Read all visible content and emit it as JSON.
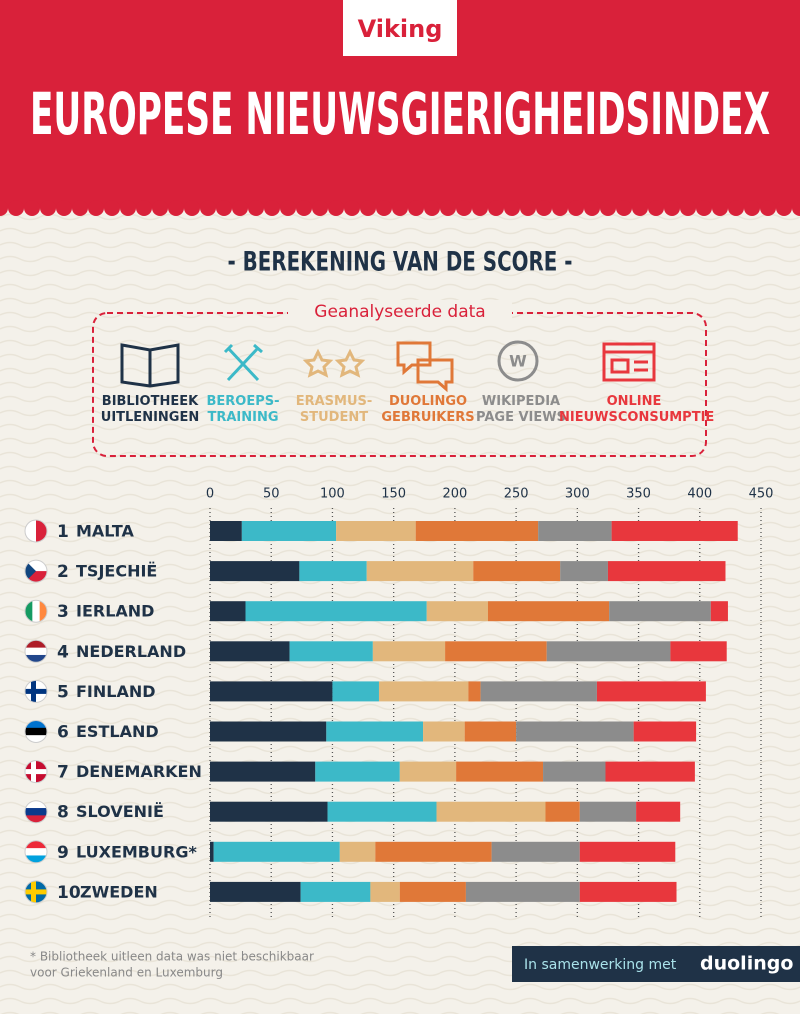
{
  "header": {
    "logo": "Viking",
    "title": "EUROPESE NIEUWSGIERIGHEIDSINDEX"
  },
  "subtitle": "- BEREKENING VAN DE SCORE -",
  "sources_title": "Geanalyseerde data",
  "chart_data": {
    "type": "stacked-bar-horizontal",
    "ranks": [
      1,
      2,
      3,
      4,
      5,
      6,
      7,
      8,
      9,
      10
    ],
    "categories": [
      "MALTA",
      "TSJECHIË",
      "IERLAND",
      "NEDERLAND",
      "FINLAND",
      "ESTLAND",
      "DENEMARKEN",
      "SLOVENIË",
      "LUXEMBURG*",
      "ZWEDEN"
    ],
    "series": [
      {
        "name": "BIBLIOTHEEK\nUITLENINGEN",
        "color": "#1f3247",
        "values": [
          26,
          73,
          29,
          65,
          100,
          95,
          86,
          96,
          3,
          74
        ]
      },
      {
        "name": "BEROEPS-\nTRAINING",
        "color": "#3cb9c8",
        "values": [
          77,
          55,
          148,
          68,
          38,
          79,
          69,
          89,
          103,
          57
        ]
      },
      {
        "name": "ERASMUS-\nSTUDENT",
        "color": "#e2b77c",
        "values": [
          65,
          87,
          50,
          59,
          73,
          34,
          46,
          89,
          29,
          24
        ]
      },
      {
        "name": "DUOLINGO\nGEBRUIKERS",
        "color": "#e07838",
        "values": [
          100,
          71,
          99,
          83,
          10,
          42,
          71,
          28,
          95,
          54
        ]
      },
      {
        "name": "WIKIPEDIA\nPAGE VIEWS",
        "color": "#8c8c8c",
        "values": [
          60,
          39,
          83,
          101,
          95,
          96,
          51,
          46,
          72,
          93
        ]
      },
      {
        "name": "ONLINE\nNIEUWSCONSUMPTIE",
        "color": "#e8373d",
        "values": [
          103,
          96,
          14,
          46,
          89,
          51,
          73,
          36,
          78,
          79
        ]
      }
    ],
    "xlim": [
      0,
      450
    ],
    "xticks": [
      0,
      50,
      100,
      150,
      200,
      250,
      300,
      350,
      400,
      450
    ],
    "grid": true
  },
  "footnote": [
    "* Bibliotheek uitleen data was niet beschikbaar",
    "voor Griekenland en Luxemburg"
  ],
  "partner": {
    "text": "In samenwerking met",
    "name": "duolingo"
  }
}
